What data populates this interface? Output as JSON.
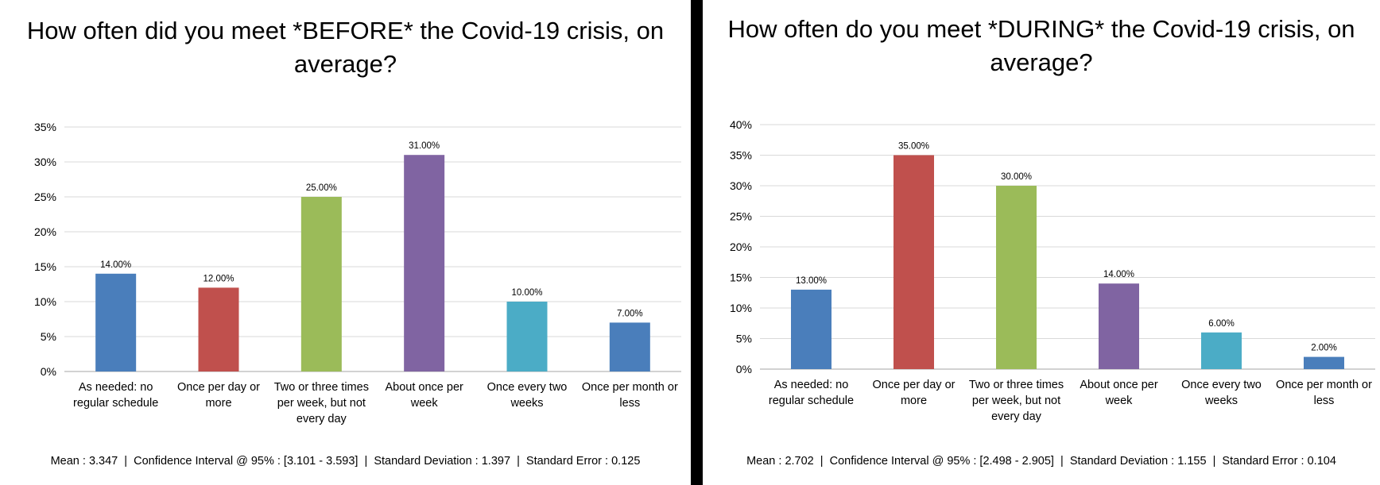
{
  "chart_data": [
    {
      "type": "bar",
      "title": "How often did you meet *BEFORE* the Covid-19 crisis, on\naverage?",
      "categories": [
        [
          "As needed: no",
          "regular schedule"
        ],
        [
          "Once per day or",
          "more"
        ],
        [
          "Two or three times",
          "per week, but not",
          "every day"
        ],
        [
          "About once per",
          "week"
        ],
        [
          "Once every two",
          "weeks"
        ],
        [
          "Once per month or",
          "less"
        ]
      ],
      "values": [
        14.0,
        12.0,
        25.0,
        31.0,
        10.0,
        7.0
      ],
      "data_labels": [
        "14.00%",
        "12.00%",
        "25.00%",
        "31.00%",
        "10.00%",
        "7.00%"
      ],
      "colors": [
        "#4a7ebb",
        "#c0504d",
        "#9bbb59",
        "#8064a2",
        "#4bacc6",
        "#4a7ebb"
      ],
      "yticks": [
        "0%",
        "5%",
        "10%",
        "15%",
        "20%",
        "25%",
        "30%",
        "35%"
      ],
      "ylim": [
        0,
        35
      ],
      "grid": true,
      "stats": "Mean : 3.347  |  Confidence Interval @ 95% : [3.101 - 3.593]  |  Standard Deviation : 1.397  |  Standard Error : 0.125"
    },
    {
      "type": "bar",
      "title": "How often do you meet *DURING* the Covid-19 crisis, on\naverage?",
      "categories": [
        [
          "As needed: no",
          "regular schedule"
        ],
        [
          "Once per day or",
          "more"
        ],
        [
          "Two or three times",
          "per week, but not",
          "every day"
        ],
        [
          "About once per",
          "week"
        ],
        [
          "Once every two",
          "weeks"
        ],
        [
          "Once per month or",
          "less"
        ]
      ],
      "values": [
        13.0,
        35.0,
        30.0,
        14.0,
        6.0,
        2.0
      ],
      "data_labels": [
        "13.00%",
        "35.00%",
        "30.00%",
        "14.00%",
        "6.00%",
        "2.00%"
      ],
      "colors": [
        "#4a7ebb",
        "#c0504d",
        "#9bbb59",
        "#8064a2",
        "#4bacc6",
        "#4a7ebb"
      ],
      "yticks": [
        "0%",
        "5%",
        "10%",
        "15%",
        "20%",
        "25%",
        "30%",
        "35%",
        "40%"
      ],
      "ylim": [
        0,
        40
      ],
      "grid": true,
      "stats": "Mean : 2.702  |  Confidence Interval @ 95% : [2.498 - 2.905]  |  Standard Deviation : 1.155  |  Standard Error : 0.104"
    }
  ]
}
